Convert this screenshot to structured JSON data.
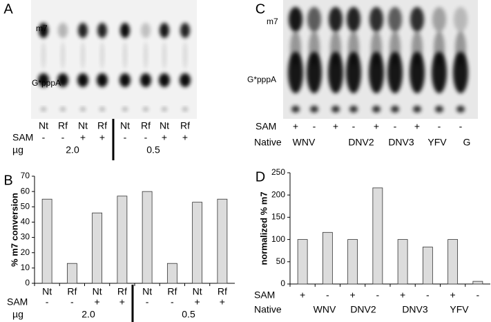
{
  "panels": {
    "a": {
      "label": "A",
      "m7": "m7",
      "gppa": "G*pppA",
      "lanes": [
        "Nt",
        "Rf",
        "Nt",
        "Rf",
        "Nt",
        "Rf",
        "Nt",
        "Rf"
      ],
      "sam_label": "SAM",
      "sam": [
        "-",
        "-",
        "+",
        "+",
        "-",
        "-",
        "+",
        "+"
      ],
      "dose_label": "µg",
      "doses": [
        "2.0",
        "0.5"
      ]
    },
    "c": {
      "label": "C",
      "m7": "m7",
      "gppa": "G*pppA",
      "sam_label": "SAM",
      "sam": [
        "+",
        "-",
        "+",
        "-",
        "+",
        "-",
        "+",
        "-",
        "-"
      ],
      "native_label": "Native",
      "natives": [
        "WNV",
        "DNV2",
        "DNV3",
        "YFV",
        "G"
      ]
    }
  },
  "chart_data": [
    {
      "type": "bar",
      "panel_label": "B",
      "y_label": "% m7 conversion",
      "categories": [
        "Nt",
        "Rf",
        "Nt",
        "Rf",
        "Nt",
        "Rf",
        "Nt",
        "Rf"
      ],
      "values": [
        55,
        13,
        46,
        57,
        60,
        13,
        53,
        55
      ],
      "color": "#dcdcdc",
      "ylim": [
        0,
        70
      ],
      "yticks": [
        0,
        10,
        20,
        30,
        40,
        50,
        60,
        70
      ],
      "sam_label": "SAM",
      "sam": [
        "-",
        "-",
        "+",
        "+",
        "-",
        "-",
        "+",
        "+"
      ],
      "dose_label": "µg",
      "doses": [
        "2.0",
        "0.5"
      ]
    },
    {
      "type": "bar",
      "panel_label": "D",
      "y_label": "normalized % m7",
      "categories": [
        "+",
        "-",
        "+",
        "-",
        "+",
        "-",
        "+",
        "-"
      ],
      "category_label": "SAM",
      "values": [
        100,
        116,
        100,
        216,
        100,
        83,
        100,
        6
      ],
      "color": "#dcdcdc",
      "ylim": [
        0,
        250
      ],
      "yticks": [
        0,
        50,
        100,
        150,
        200,
        250
      ],
      "native_label": "Native",
      "natives": [
        "WNV",
        "DNV2",
        "DNV3",
        "YFV"
      ]
    }
  ]
}
